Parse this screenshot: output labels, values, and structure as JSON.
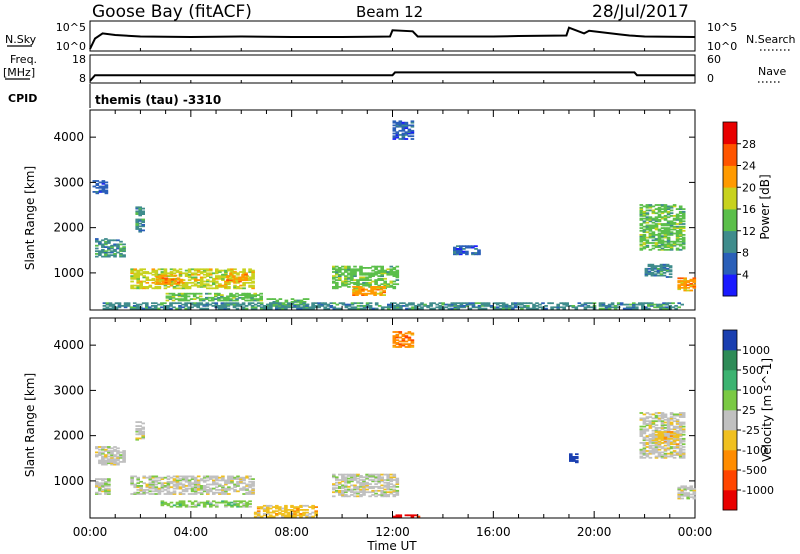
{
  "header": {
    "station": "Goose Bay (fitACF)",
    "beam": "Beam 12",
    "date": "28/Jul/2017"
  },
  "params": {
    "nsky_label": "N.Sky",
    "nsearch_label": "N.Search",
    "freq_label_1": "Freq.",
    "freq_label_2": "[MHz]",
    "nave_label": "Nave",
    "cpid_label": "CPID",
    "cpid_text": "themis (tau) -3310",
    "nsky_ticks": [
      "10^5",
      "10^0"
    ],
    "nsearch_ticks": [
      "10^5",
      "10^0"
    ],
    "freq_ticks": [
      "18",
      "8"
    ],
    "nave_ticks": [
      "60",
      "0"
    ],
    "nsky_series": {
      "x": [
        0.0,
        0.2,
        0.5,
        1.0,
        2.0,
        4.0,
        6.0,
        8.0,
        10.0,
        11.9,
        12.0,
        12.8,
        13.0,
        16.0,
        17.0,
        18.9,
        19.0,
        19.6,
        19.8,
        21.0,
        21.4,
        22.0,
        24.0
      ],
      "y": [
        0.0,
        2.0,
        3.0,
        2.7,
        2.4,
        2.3,
        2.4,
        2.3,
        2.3,
        2.4,
        3.6,
        3.4,
        2.4,
        2.4,
        2.5,
        2.6,
        4.1,
        3.0,
        3.5,
        2.8,
        2.6,
        2.4,
        2.3
      ]
    },
    "freq_series": {
      "x": [
        0.0,
        0.2,
        12.0,
        12.1,
        21.6,
        21.7,
        24.0
      ],
      "y": [
        8.0,
        10.4,
        10.4,
        11.6,
        11.6,
        10.4,
        10.4
      ]
    }
  },
  "chart_data": [
    {
      "type": "heatmap",
      "name": "power-panel",
      "x_ticks": [
        "00:00",
        "04:00",
        "08:00",
        "12:00",
        "16:00",
        "20:00",
        "00:00"
      ],
      "x_range": [
        0,
        24
      ],
      "ylabel": "Slant Range [km]",
      "y_ticks": [
        "1000",
        "2000",
        "3000",
        "4000"
      ],
      "ylim": [
        180,
        4600
      ],
      "colorbar_label": "Power [dB]",
      "colorbar_ticks": [
        "4",
        "8",
        "12",
        "16",
        "20",
        "24",
        "28"
      ],
      "colorbar_colors": [
        "#1a1aff",
        "#2a5fb8",
        "#3f8c8c",
        "#5bbf4a",
        "#c8d21e",
        "#ff9a00",
        "#ff5500",
        "#e80000"
      ],
      "regions": [
        {
          "t0": 0.1,
          "t1": 0.6,
          "r0": 2750,
          "r1": 3050,
          "level": 1
        },
        {
          "t0": 0.2,
          "t1": 1.4,
          "r0": 1350,
          "r1": 1750,
          "level": 2
        },
        {
          "t0": 1.8,
          "t1": 2.1,
          "r0": 1900,
          "r1": 2500,
          "level": 2
        },
        {
          "t0": 1.6,
          "t1": 6.5,
          "r0": 650,
          "r1": 1100,
          "level": 4
        },
        {
          "t0": 2.6,
          "t1": 3.6,
          "r0": 750,
          "r1": 950,
          "level": 5
        },
        {
          "t0": 5.4,
          "t1": 6.2,
          "r0": 800,
          "r1": 1000,
          "level": 5
        },
        {
          "t0": 3.0,
          "t1": 6.8,
          "r0": 380,
          "r1": 560,
          "level": 3
        },
        {
          "t0": 7.0,
          "t1": 8.6,
          "r0": 260,
          "r1": 420,
          "level": 3
        },
        {
          "t0": 9.6,
          "t1": 12.2,
          "r0": 650,
          "r1": 1150,
          "level": 3
        },
        {
          "t0": 10.4,
          "t1": 11.6,
          "r0": 500,
          "r1": 700,
          "level": 5
        },
        {
          "t0": 12.0,
          "t1": 12.8,
          "r0": 3950,
          "r1": 4350,
          "level": 1
        },
        {
          "t0": 14.4,
          "t1": 15.4,
          "r0": 1400,
          "r1": 1600,
          "level": 1
        },
        {
          "t0": 21.8,
          "t1": 23.6,
          "r0": 1500,
          "r1": 2500,
          "level": 3
        },
        {
          "t0": 22.0,
          "t1": 23.0,
          "r0": 900,
          "r1": 1200,
          "level": 2
        },
        {
          "t0": 23.3,
          "t1": 24.0,
          "r0": 600,
          "r1": 900,
          "level": 5
        },
        {
          "t0": 0.5,
          "t1": 23.5,
          "r0": 200,
          "r1": 330,
          "level": 2
        }
      ]
    },
    {
      "type": "heatmap",
      "name": "velocity-panel",
      "x_ticks": [
        "00:00",
        "04:00",
        "08:00",
        "12:00",
        "16:00",
        "20:00",
        "00:00"
      ],
      "x_range": [
        0,
        24
      ],
      "xlabel": "Time UT",
      "ylabel": "Slant Range [km]",
      "y_ticks": [
        "1000",
        "2000",
        "3000",
        "4000"
      ],
      "ylim": [
        180,
        4600
      ],
      "colorbar_label": "Velocity [m s^-1]",
      "colorbar_ticks": [
        "1000",
        "500",
        "100",
        "25",
        "-25",
        "-100",
        "-500",
        "-1000"
      ],
      "colorbar_colors": [
        "#1a3fb0",
        "#2e8b57",
        "#3cb371",
        "#7ac943",
        "#c0c0c0",
        "#f0c020",
        "#ff8c00",
        "#ff4500",
        "#e80000"
      ],
      "regions": [
        {
          "t0": 0.2,
          "t1": 1.4,
          "r0": 1350,
          "r1": 1750,
          "level": 4
        },
        {
          "t0": 1.8,
          "t1": 2.1,
          "r0": 1900,
          "r1": 2300,
          "level": 4
        },
        {
          "t0": 0.2,
          "t1": 0.7,
          "r0": 700,
          "r1": 1050,
          "level": 4
        },
        {
          "t0": 1.6,
          "t1": 6.5,
          "r0": 700,
          "r1": 1100,
          "level": 4
        },
        {
          "t0": 2.8,
          "t1": 6.4,
          "r0": 420,
          "r1": 560,
          "level": 3
        },
        {
          "t0": 6.5,
          "t1": 9.0,
          "r0": 200,
          "r1": 450,
          "level": 5
        },
        {
          "t0": 9.6,
          "t1": 12.2,
          "r0": 650,
          "r1": 1150,
          "level": 4
        },
        {
          "t0": 12.0,
          "t1": 12.8,
          "r0": 3950,
          "r1": 4300,
          "level": 6
        },
        {
          "t0": 12.0,
          "t1": 13.0,
          "r0": 200,
          "r1": 260,
          "level": 8
        },
        {
          "t0": 19.0,
          "t1": 19.3,
          "r0": 1400,
          "r1": 1600,
          "level": 0
        },
        {
          "t0": 21.8,
          "t1": 23.6,
          "r0": 1500,
          "r1": 2500,
          "level": 4
        },
        {
          "t0": 22.4,
          "t1": 23.3,
          "r0": 1800,
          "r1": 2100,
          "level": 5
        },
        {
          "t0": 23.3,
          "t1": 24.0,
          "r0": 600,
          "r1": 900,
          "level": 4
        }
      ]
    }
  ]
}
